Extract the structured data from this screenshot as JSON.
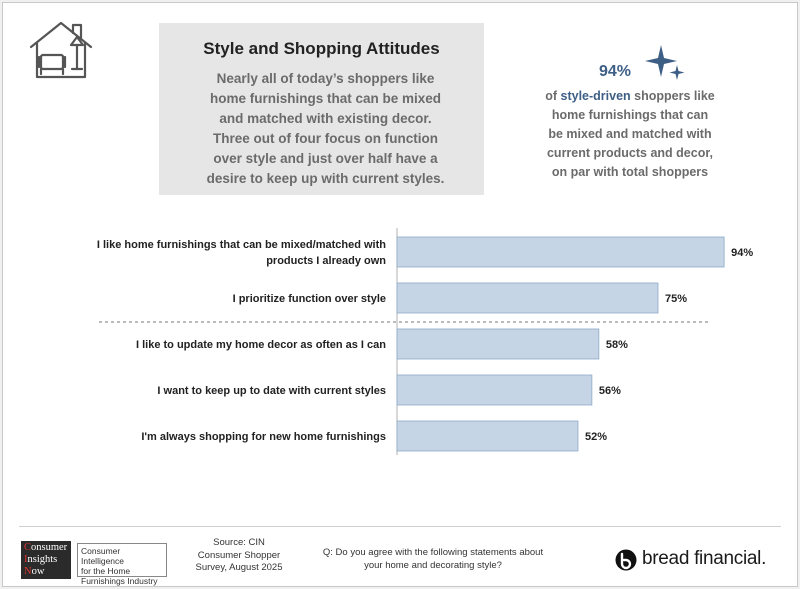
{
  "info_box": {
    "title": "Style and Shopping Attitudes",
    "lines": [
      "Nearly all of today’s shoppers like",
      "home furnishings that can be mixed",
      "and matched with existing decor.",
      "Three out of four focus on function",
      "over style and just over half have a",
      "desire to keep up with current styles."
    ]
  },
  "callout": {
    "pct": "94%",
    "line1_prefix": "of ",
    "line1_highlight": "style-driven",
    "line1_suffix": " shoppers like",
    "lines": [
      "home furnishings that can",
      "be mixed and matched with",
      "current products and decor,",
      "on par with total shoppers"
    ],
    "highlight_color": "#3e5f85"
  },
  "chart_data": {
    "type": "bar",
    "orientation": "horizontal",
    "categories": [
      [
        "I like home furnishings that can be mixed/matched with",
        "products I already own"
      ],
      [
        "I prioritize function over style"
      ],
      [
        "I like to update my home decor as often as I can"
      ],
      [
        "I want to keep up to date with current styles"
      ],
      [
        "I'm always shopping for new home furnishings"
      ]
    ],
    "values": [
      94,
      75,
      58,
      56,
      52
    ],
    "value_labels": [
      "94%",
      "75%",
      "58%",
      "56%",
      "52%"
    ],
    "xlim": [
      0,
      100
    ],
    "bar_color": "#c5d5e6",
    "bar_edge_color": "#8eaac8",
    "divider_after_index": 1
  },
  "footer": {
    "logo_words": [
      "Consumer",
      "Insights",
      "Now"
    ],
    "logo_tag": [
      "Consumer Intelligence",
      "for the Home",
      "Furnishings Industry"
    ],
    "source_lines": [
      "Source: CIN",
      "Consumer Shopper",
      "Survey, August 2025"
    ],
    "question_lines": [
      "Q: Do you agree with the following statements about",
      "your home and decorating style?"
    ],
    "brand": "bread financial",
    "brand_mark": "."
  }
}
